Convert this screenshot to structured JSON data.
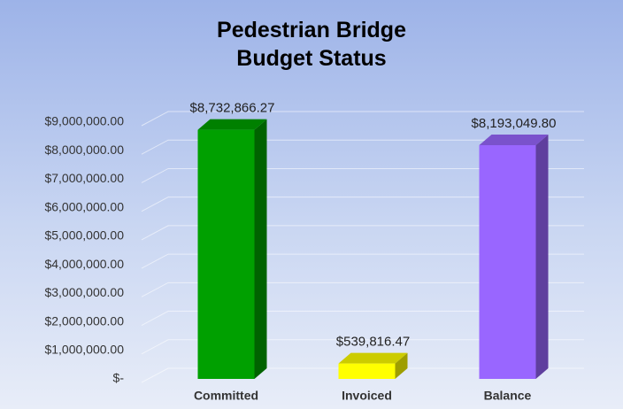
{
  "chart_data": {
    "type": "bar3d",
    "title": "Pedestrian Bridge Budget Status",
    "categories": [
      "Committed",
      "Invoiced",
      "Balance"
    ],
    "values": [
      8732866.27,
      539816.47,
      8193049.8
    ],
    "value_labels": [
      "$8,732,866.27",
      "$539,816.47",
      "$8,193,049.80"
    ],
    "colors": [
      "#00a000",
      "#ffff00",
      "#9966ff"
    ],
    "ylim": [
      0,
      9000000
    ],
    "yticks": [
      {
        "value": 0,
        "label": "$-"
      },
      {
        "value": 1000000,
        "label": "$1,000,000.00"
      },
      {
        "value": 2000000,
        "label": "$2,000,000.00"
      },
      {
        "value": 3000000,
        "label": "$3,000,000.00"
      },
      {
        "value": 4000000,
        "label": "$4,000,000.00"
      },
      {
        "value": 5000000,
        "label": "$5,000,000.00"
      },
      {
        "value": 6000000,
        "label": "$6,000,000.00"
      },
      {
        "value": 7000000,
        "label": "$7,000,000.00"
      },
      {
        "value": 8000000,
        "label": "$8,000,000.00"
      },
      {
        "value": 9000000,
        "label": "$9,000,000.00"
      }
    ],
    "grid": true
  }
}
